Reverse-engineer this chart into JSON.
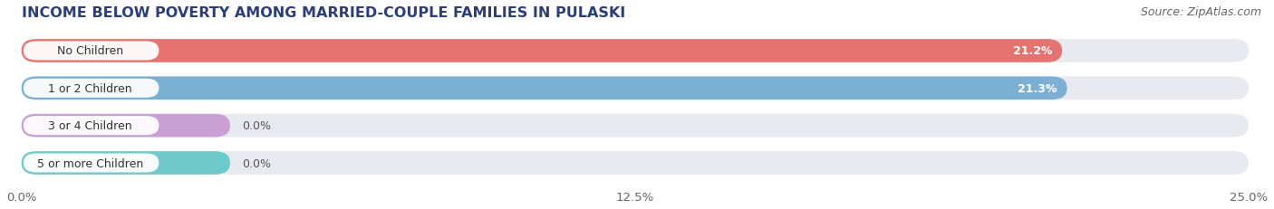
{
  "title": "INCOME BELOW POVERTY AMONG MARRIED-COUPLE FAMILIES IN PULASKI",
  "source": "Source: ZipAtlas.com",
  "categories": [
    "No Children",
    "1 or 2 Children",
    "3 or 4 Children",
    "5 or more Children"
  ],
  "values": [
    21.2,
    21.3,
    0.0,
    0.0
  ],
  "bar_colors": [
    "#e57370",
    "#7bafd4",
    "#c9a0d4",
    "#6ec9c9"
  ],
  "xlim": [
    0,
    25.0
  ],
  "xticks": [
    0.0,
    12.5,
    25.0
  ],
  "xtick_labels": [
    "0.0%",
    "12.5%",
    "25.0%"
  ],
  "background_color": "#ffffff",
  "bar_bg_color": "#e8eaf0",
  "title_fontsize": 11.5,
  "source_fontsize": 9,
  "tick_fontsize": 9.5,
  "label_fontsize": 9,
  "value_fontsize": 9
}
